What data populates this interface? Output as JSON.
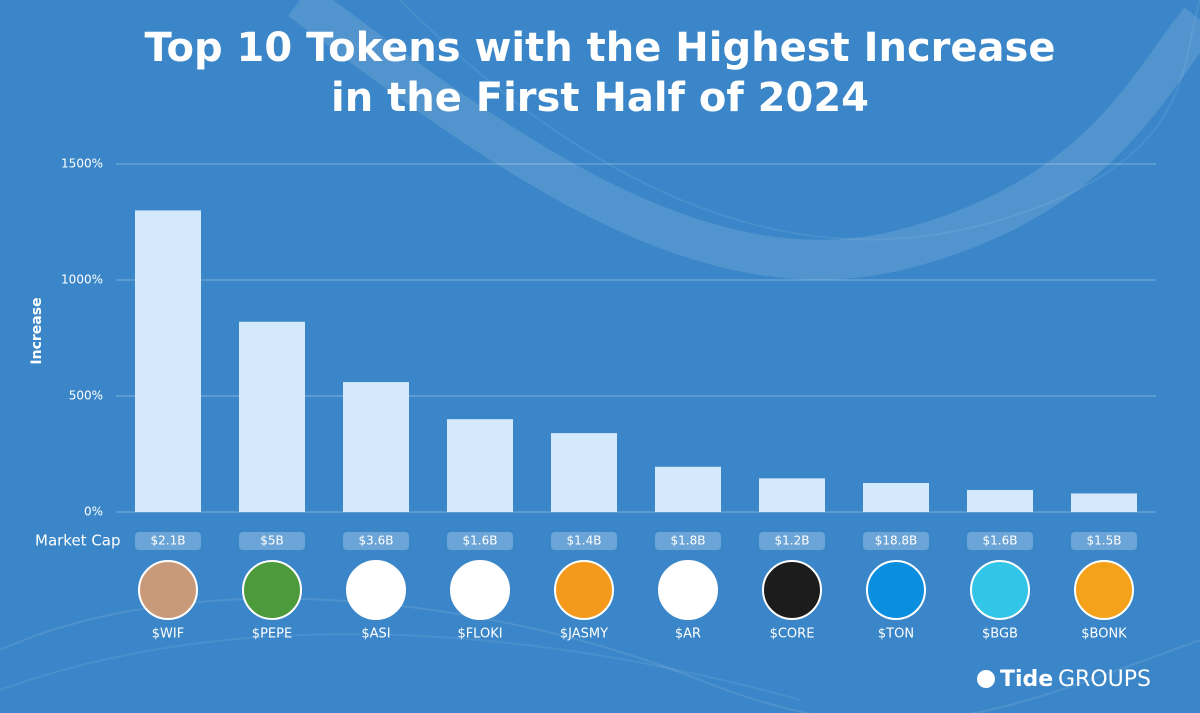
{
  "chart_data": {
    "type": "bar",
    "title": [
      "Top 10 Tokens with the Highest Increase",
      "in the First Half of 2024"
    ],
    "y_label": "Increase",
    "categories": [
      "$WIF",
      "$PEPE",
      "$ASI",
      "$FLOKI",
      "$JASMY",
      "$AR",
      "$CORE",
      "$TON",
      "$BGB",
      "$BONK"
    ],
    "values": [
      1300,
      820,
      560,
      400,
      340,
      195,
      145,
      125,
      95,
      80
    ],
    "color": "#d4eafc",
    "row_label": "Market Cap",
    "market_caps": [
      "$2.1B",
      "$5B",
      "$3.6B",
      "$1.6B",
      "$1.4B",
      "$1.8B",
      "$1.2B",
      "$18.8B",
      "$1.6B",
      "$1.5B"
    ],
    "ylim": [
      0,
      1500
    ],
    "yticks": [
      {
        "value": 0,
        "label": "0%"
      },
      {
        "value": 500,
        "label": "500%"
      },
      {
        "value": 1000,
        "label": "1000%"
      },
      {
        "value": 1500,
        "label": "1500%"
      }
    ],
    "grid": true,
    "brand": "Tide",
    "brand_suffix": "GROUPS"
  }
}
